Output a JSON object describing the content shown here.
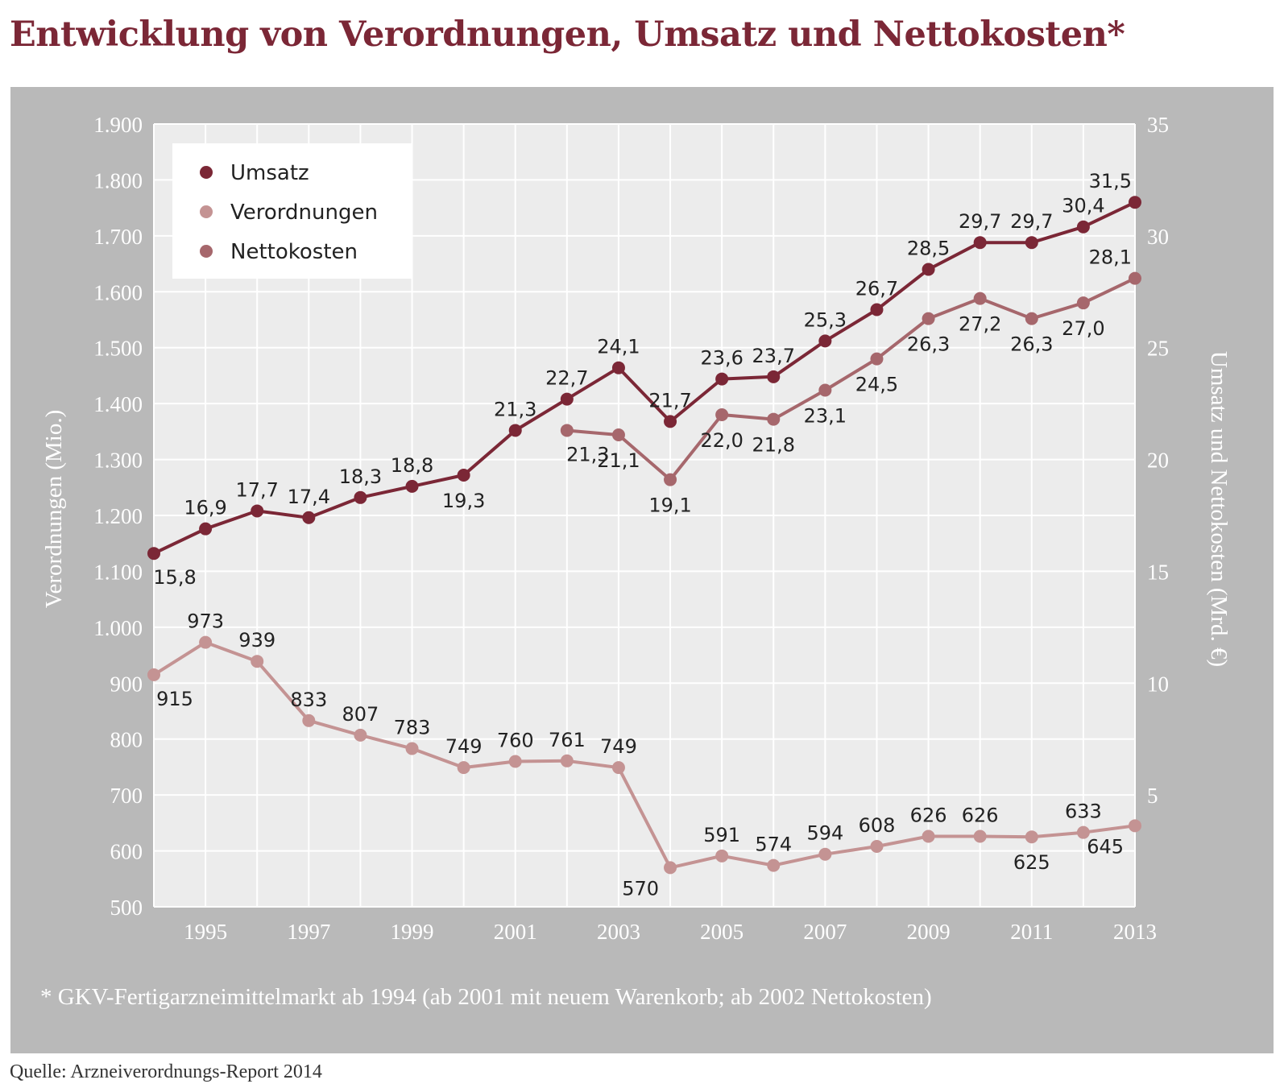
{
  "title": "Entwicklung von Verordnungen, Umsatz und Nettokosten*",
  "footnote": "* GKV-Fertigarzneimittelmarkt ab 1994 (ab 2001 mit neuem Warenkorb; ab 2002 Nettokosten)",
  "source": "Quelle: Arzneiverordnungs-Report 2014",
  "colors": {
    "title": "#7b2736",
    "umsatz": "#7b2736",
    "verordnungen": "#c49393",
    "nettokosten": "#a6676c",
    "panel": "#b9b9b9",
    "plot": "#ececec"
  },
  "chart_data": {
    "type": "line",
    "x": [
      1994,
      1995,
      1996,
      1997,
      1998,
      1999,
      2000,
      2001,
      2002,
      2003,
      2004,
      2005,
      2006,
      2007,
      2008,
      2009,
      2010,
      2011,
      2012,
      2013
    ],
    "x_ticks": [
      "1995",
      "1997",
      "1999",
      "2001",
      "2003",
      "2005",
      "2007",
      "2009",
      "2011",
      "2013"
    ],
    "left_axis": {
      "label": "Verordnungen (Mio.)",
      "ylim": [
        500,
        1900
      ],
      "ticks": [
        "500",
        "600",
        "700",
        "800",
        "900",
        "1.000",
        "1.100",
        "1.200",
        "1.300",
        "1.400",
        "1.500",
        "1.600",
        "1.700",
        "1.800",
        "1.900"
      ]
    },
    "right_axis": {
      "label": "Umsatz und Nettokosten (Mrd. €)",
      "ylim": [
        0,
        35
      ],
      "ticks": [
        "5",
        "10",
        "15",
        "20",
        "25",
        "30",
        "35"
      ]
    },
    "grid": true,
    "legend_position": "top-left",
    "series": [
      {
        "name": "Umsatz",
        "axis": "right",
        "color": "#7b2736",
        "x": [
          1994,
          1995,
          1996,
          1997,
          1998,
          1999,
          2000,
          2001,
          2002,
          2003,
          2004,
          2005,
          2006,
          2007,
          2008,
          2009,
          2010,
          2011,
          2012,
          2013
        ],
        "values": [
          15.8,
          16.9,
          17.7,
          17.4,
          18.3,
          18.8,
          19.3,
          21.3,
          22.7,
          24.1,
          21.7,
          23.6,
          23.7,
          25.3,
          26.7,
          28.5,
          29.7,
          29.7,
          30.4,
          31.5
        ],
        "labels": [
          "15,8",
          "16,9",
          "17,7",
          "17,4",
          "18,3",
          "18,8",
          "19,3",
          "21,3",
          "22,7",
          "24,1",
          "21,7",
          "23,6",
          "23,7",
          "25,3",
          "26,7",
          "28,5",
          "29,7",
          "29,7",
          "30,4",
          "31,5"
        ],
        "label_pos": [
          "below",
          "above",
          "above",
          "above",
          "above",
          "above",
          "below",
          "above",
          "above",
          "above",
          "above",
          "above",
          "above",
          "above",
          "above",
          "above",
          "above",
          "above",
          "above",
          "above"
        ]
      },
      {
        "name": "Verordnungen",
        "axis": "left",
        "color": "#c49393",
        "x": [
          1994,
          1995,
          1996,
          1997,
          1998,
          1999,
          2000,
          2001,
          2002,
          2003,
          2004,
          2005,
          2006,
          2007,
          2008,
          2009,
          2010,
          2011,
          2012,
          2013
        ],
        "values": [
          915,
          973,
          939,
          833,
          807,
          783,
          749,
          760,
          761,
          749,
          570,
          591,
          574,
          594,
          608,
          626,
          626,
          625,
          633,
          645
        ],
        "labels": [
          "915",
          "973",
          "939",
          "833",
          "807",
          "783",
          "749",
          "760",
          "761",
          "749",
          "570",
          "591",
          "574",
          "594",
          "608",
          "626",
          "626",
          "625",
          "633",
          "645"
        ],
        "label_pos": [
          "below",
          "above",
          "above",
          "above",
          "above",
          "above",
          "above",
          "above",
          "above",
          "above",
          "below-left",
          "above",
          "above",
          "above",
          "above",
          "above",
          "above",
          "below",
          "above",
          "below-left"
        ]
      },
      {
        "name": "Nettokosten",
        "axis": "right",
        "color": "#a6676c",
        "x": [
          2002,
          2003,
          2004,
          2005,
          2006,
          2007,
          2008,
          2009,
          2010,
          2011,
          2012,
          2013
        ],
        "values": [
          21.3,
          21.1,
          19.1,
          22.0,
          21.8,
          23.1,
          24.5,
          26.3,
          27.2,
          26.3,
          27.0,
          28.1
        ],
        "labels": [
          "21,3",
          "21,1",
          "19,1",
          "22,0",
          "21,8",
          "23,1",
          "24,5",
          "26,3",
          "27,2",
          "26,3",
          "27,0",
          "28,1"
        ],
        "label_pos": [
          "below",
          "below",
          "below",
          "below",
          "below",
          "below",
          "below",
          "below",
          "below",
          "below",
          "below",
          "above"
        ]
      }
    ]
  }
}
